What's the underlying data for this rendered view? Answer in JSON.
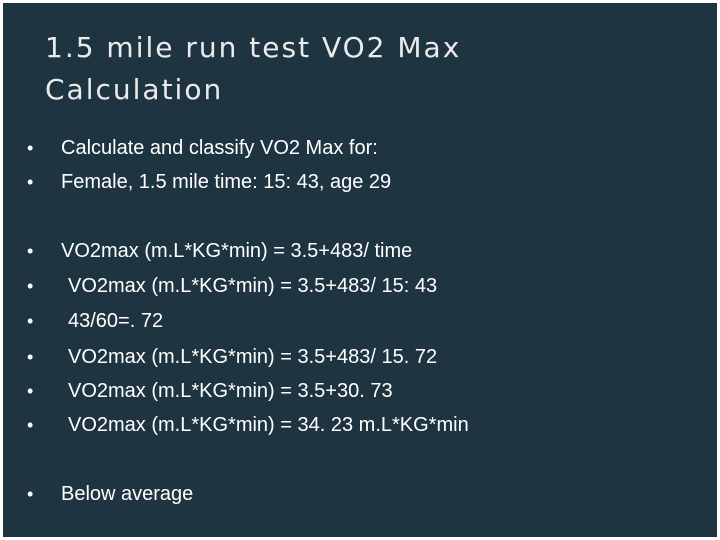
{
  "title": {
    "line1": "1.5 mile run test VO2 Max",
    "line2": "Calculation"
  },
  "bullet_marker": "•",
  "bullets": [
    "Calculate and classify VO2 Max for:",
    "Female, 1.5 mile time: 15: 43, age 29",
    "VO2max (m.L*KG*min) = 3.5+483/ time",
    "VO2max (m.L*KG*min) = 3.5+483/ 15: 43",
    "43/60=. 72",
    "VO2max (m.L*KG*min) = 3.5+483/ 15. 72",
    "VO2max (m.L*KG*min) = 3.5+30. 73",
    "VO2max (m.L*KG*min) = 34. 23 m.L*KG*min",
    "Below average"
  ]
}
